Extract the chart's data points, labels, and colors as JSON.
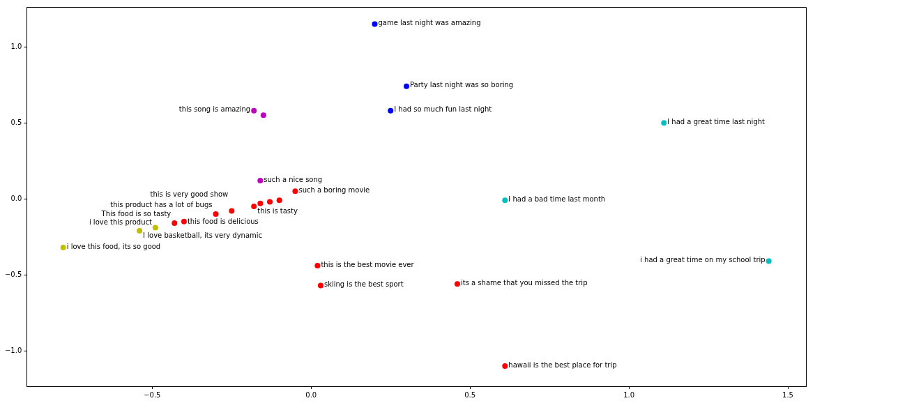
{
  "chart_data": {
    "type": "scatter",
    "marker": "circle",
    "legend": false,
    "xlim": [
      -0.895,
      1.557
    ],
    "ylim": [
      -1.233,
      1.262
    ],
    "xticks": [
      {
        "value": -0.5,
        "label": "−0.5"
      },
      {
        "value": 0,
        "label": "0.0"
      },
      {
        "value": 0.5,
        "label": "0.5"
      },
      {
        "value": 1,
        "label": "1.0"
      },
      {
        "value": 1.5,
        "label": "1.5"
      }
    ],
    "yticks": [
      {
        "value": -1,
        "label": "−1.0"
      },
      {
        "value": -0.5,
        "label": "−0.5"
      },
      {
        "value": 0,
        "label": "0.0"
      },
      {
        "value": 0.5,
        "label": "0.5"
      },
      {
        "value": 1,
        "label": "1.0"
      }
    ],
    "series": [
      {
        "color": "#ff0000",
        "x": [
          -0.05,
          -0.18,
          -0.16,
          -0.13,
          -0.1,
          -0.25,
          -0.3,
          -0.4,
          -0.43,
          0.02,
          0.03,
          0.46,
          0.61
        ],
        "values": [
          0.05,
          -0.05,
          -0.03,
          -0.02,
          -0.01,
          -0.08,
          -0.1,
          -0.15,
          -0.16,
          -0.44,
          -0.57,
          -0.56,
          -1.1
        ]
      },
      {
        "color": "#0000ff",
        "x": [
          0.2,
          0.3,
          0.25
        ],
        "values": [
          1.15,
          0.74,
          0.58
        ]
      },
      {
        "color": "#00bfbf",
        "x": [
          1.11,
          0.61,
          1.44
        ],
        "values": [
          0.5,
          -0.01,
          -0.41
        ]
      },
      {
        "color": "#bf00bf",
        "x": [
          -0.18,
          -0.15,
          -0.16
        ],
        "values": [
          0.58,
          0.55,
          0.12
        ]
      },
      {
        "color": "#bfbf00",
        "x": [
          -0.49,
          -0.54,
          -0.78
        ],
        "values": [
          -0.19,
          -0.21,
          -0.32
        ]
      }
    ],
    "annotations": [
      {
        "text": "game last night was amazing",
        "x": 0.2,
        "y": 1.15
      },
      {
        "text": "Party last night was so boring",
        "x": 0.3,
        "y": 0.74
      },
      {
        "text": "I had so much fun last night",
        "x": 0.25,
        "y": 0.58
      },
      {
        "text": "I had a great time last night",
        "x": 1.11,
        "y": 0.5
      },
      {
        "text": "I had a bad time last month",
        "x": 0.61,
        "y": -0.01
      },
      {
        "text": "i had a great time on my school trip",
        "x": 1.44,
        "y": -0.41
      },
      {
        "text": "this song is amazing",
        "x": -0.18,
        "y": 0.58
      },
      {
        "text": "such a nice song",
        "x": -0.16,
        "y": 0.12
      },
      {
        "text": "such a boring movie",
        "x": -0.05,
        "y": 0.05
      },
      {
        "text": "this is tasty",
        "x": -0.18,
        "y": -0.05
      },
      {
        "text": "this is very good show",
        "x": -0.25,
        "y": -0.08
      },
      {
        "text": "this product has a lot of bugs",
        "x": -0.3,
        "y": -0.1
      },
      {
        "text": "this food is delicious",
        "x": -0.4,
        "y": -0.15
      },
      {
        "text": "This food is so tasty",
        "x": -0.43,
        "y": -0.16
      },
      {
        "text": "i love this product",
        "x": -0.49,
        "y": -0.19
      },
      {
        "text": "I love basketball, its very dynamic",
        "x": -0.54,
        "y": -0.21
      },
      {
        "text": "i love this food, its so good",
        "x": -0.78,
        "y": -0.32
      },
      {
        "text": "this is the best movie ever",
        "x": 0.02,
        "y": -0.44
      },
      {
        "text": "skiing is the best sport",
        "x": 0.03,
        "y": -0.57
      },
      {
        "text": "its a shame that you missed the trip",
        "x": 0.46,
        "y": -0.56
      },
      {
        "text": "hawaii is the best place for trip",
        "x": 0.61,
        "y": -1.1
      }
    ]
  }
}
